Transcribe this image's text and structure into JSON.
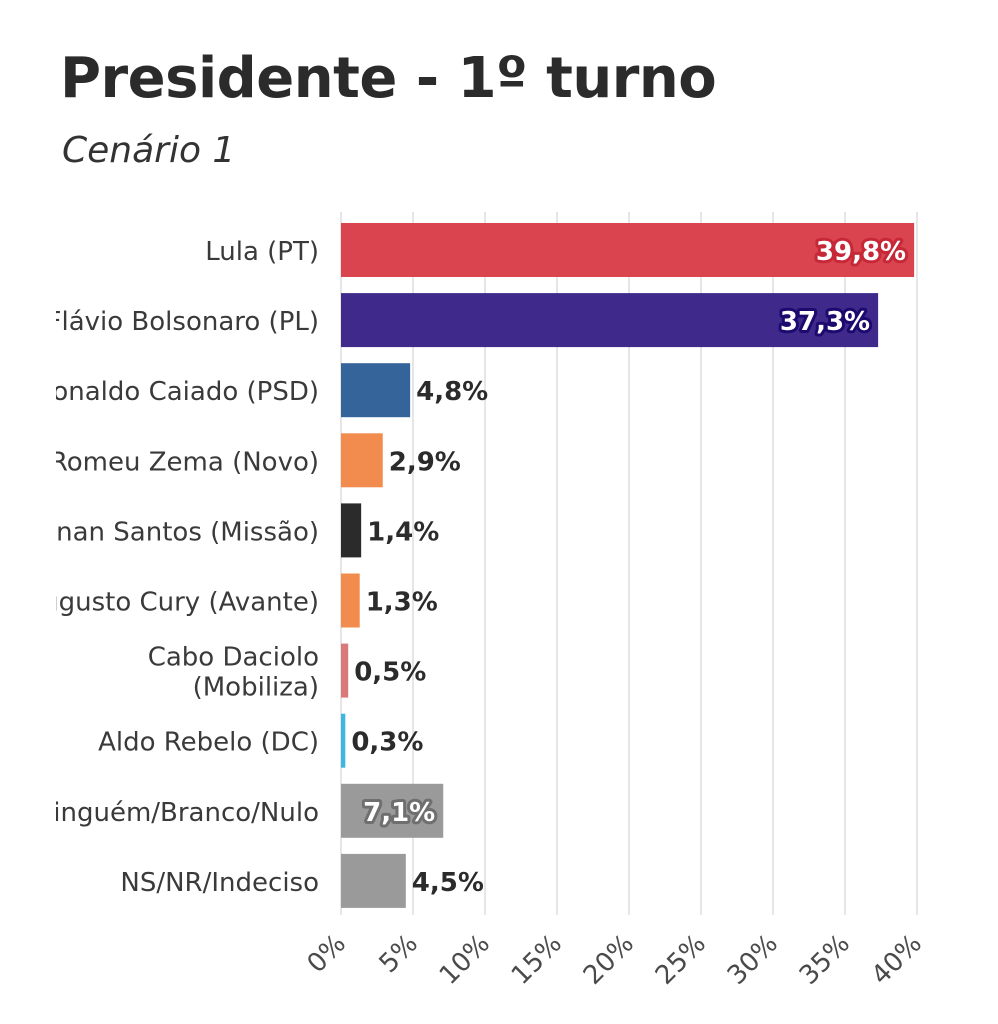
{
  "header": {
    "title": "Presidente - 1º turno",
    "subtitle": "Cenário 1"
  },
  "colors": {
    "grid": "#e6e6e6",
    "label_text": "#3a3a3a",
    "value_text": "#2b2b2b"
  },
  "chart_data": {
    "type": "bar",
    "orientation": "horizontal",
    "title": "Presidente - 1º turno",
    "subtitle": "Cenário 1",
    "xlabel": "",
    "ylabel": "",
    "xlim": [
      0,
      40
    ],
    "x_ticks": [
      "0%",
      "5%",
      "10%",
      "15%",
      "20%",
      "25%",
      "30%",
      "35%",
      "40%"
    ],
    "x_tick_values": [
      0,
      5,
      10,
      15,
      20,
      25,
      30,
      35,
      40
    ],
    "grid": true,
    "bars": [
      {
        "label": "Lula (PT)",
        "label_lines": [
          "Lula (PT)"
        ],
        "value": 39.8,
        "value_label": "39,8%",
        "color": "#d9444f",
        "label_inside": true,
        "inside_text_color": "#ffffff",
        "outline_color": "#c62838"
      },
      {
        "label": "Flávio Bolsonaro (PL)",
        "label_lines": [
          "Flávio Bolsonaro (PL)"
        ],
        "value": 37.3,
        "value_label": "37,3%",
        "color": "#3f2a8c",
        "label_inside": true,
        "inside_text_color": "#ffffff",
        "outline_color": "#1d0a6e"
      },
      {
        "label": "Ronaldo Caiado (PSD)",
        "label_lines": [
          "Ronaldo Caiado (PSD)"
        ],
        "value": 4.8,
        "value_label": "4,8%",
        "color": "#35649a",
        "label_inside": false
      },
      {
        "label": "Romeu Zema (Novo)",
        "label_lines": [
          "Romeu Zema (Novo)"
        ],
        "value": 2.9,
        "value_label": "2,9%",
        "color": "#f28c4e",
        "label_inside": false
      },
      {
        "label": "Renan Santos (Missão)",
        "label_lines": [
          "Renan Santos (Missão)"
        ],
        "value": 1.4,
        "value_label": "1,4%",
        "color": "#2b2b2b",
        "label_inside": false
      },
      {
        "label": "Augusto Cury (Avante)",
        "label_lines": [
          "Augusto Cury (Avante)"
        ],
        "value": 1.3,
        "value_label": "1,3%",
        "color": "#f28c4e",
        "label_inside": false
      },
      {
        "label": "Cabo Daciolo (Mobiliza)",
        "label_lines": [
          "Cabo Daciolo",
          "(Mobiliza)"
        ],
        "value": 0.5,
        "value_label": "0,5%",
        "color": "#d97a7a",
        "label_inside": false
      },
      {
        "label": "Aldo Rebelo (DC)",
        "label_lines": [
          "Aldo Rebelo (DC)"
        ],
        "value": 0.3,
        "value_label": "0,3%",
        "color": "#3fb6e0",
        "label_inside": false
      },
      {
        "label": "Ninguém/Branco/Nulo",
        "label_lines": [
          "Ninguém/Branco/Nulo"
        ],
        "value": 7.1,
        "value_label": "7,1%",
        "color": "#9a9a9a",
        "label_inside": true,
        "inside_text_color": "#ffffff",
        "outline_color": "#6f6f6f"
      },
      {
        "label": "NS/NR/Indeciso",
        "label_lines": [
          "NS/NR/Indeciso"
        ],
        "value": 4.5,
        "value_label": "4,5%",
        "color": "#9a9a9a",
        "label_inside": false
      }
    ]
  }
}
